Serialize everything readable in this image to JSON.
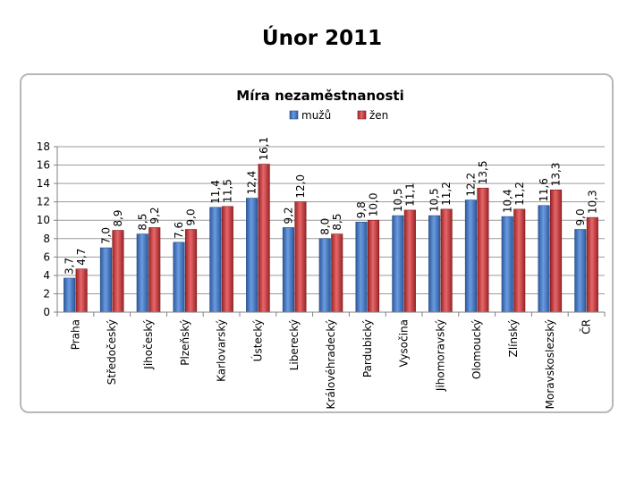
{
  "page_title": "Únor 2011",
  "chart_data": {
    "type": "bar",
    "title": "Míra nezaměstnanosti",
    "xlabel": "",
    "ylabel": "",
    "ylim": [
      0,
      18
    ],
    "yticks": [
      0,
      2,
      4,
      6,
      8,
      10,
      12,
      14,
      16,
      18
    ],
    "grid": true,
    "legend": "top",
    "categories": [
      "Praha",
      "Středočeský",
      "Jihočeský",
      "Plzeňský",
      "Karlovarský",
      "Ústecký",
      "Liberecký",
      "Královéhradecký",
      "Pardubický",
      "Vysočina",
      "Jihomoravský",
      "Olomoucký",
      "Zlínský",
      "Moravskoslezský",
      "ČR"
    ],
    "series": [
      {
        "name": "mužů",
        "color": "#3f72c0",
        "values": [
          3.7,
          7.0,
          8.5,
          7.6,
          11.4,
          12.4,
          9.2,
          8.0,
          9.8,
          10.5,
          10.5,
          12.2,
          10.4,
          11.6,
          9.0
        ],
        "labels": [
          "3,7",
          "7,0",
          "8,5",
          "7,6",
          "11,4",
          "12,4",
          "9,2",
          "8,0",
          "9,8",
          "10,5",
          "10,5",
          "12,2",
          "10,4",
          "11,6",
          "9,0"
        ]
      },
      {
        "name": "žen",
        "color": "#c8383b",
        "values": [
          4.7,
          8.9,
          9.2,
          9.0,
          11.5,
          16.1,
          12.0,
          8.5,
          10.0,
          11.1,
          11.2,
          13.5,
          11.2,
          13.3,
          10.3
        ],
        "labels": [
          "4,7",
          "8,9",
          "9,2",
          "9,0",
          "11,5",
          "16,1",
          "12,0",
          "8,5",
          "10,0",
          "11,1",
          "11,2",
          "13,5",
          "11,2",
          "13,3",
          "10,3"
        ]
      }
    ]
  }
}
